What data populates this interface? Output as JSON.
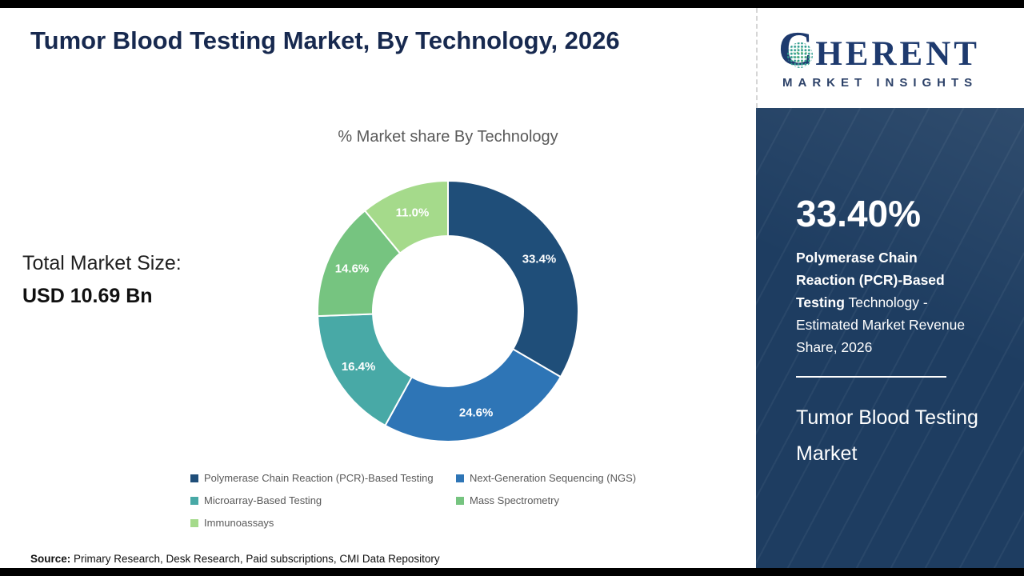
{
  "header": {
    "title": "Tumor Blood Testing Market, By Technology, 2026"
  },
  "total_market": {
    "label": "Total Market Size:",
    "value": "USD 10.69 Bn"
  },
  "chart_data": {
    "type": "pie",
    "donut": true,
    "title": "% Market share By Technology",
    "labels": [
      "Polymerase Chain Reaction (PCR)-Based Testing",
      "Next-Generation Sequencing (NGS)",
      "Microarray-Based Testing",
      "Mass Spectrometry",
      "Immunoassays"
    ],
    "values": [
      33.4,
      24.6,
      16.4,
      14.6,
      11.0
    ],
    "value_labels": [
      "33.4%",
      "24.6%",
      "16.4%",
      "14.6%",
      "11.0%"
    ],
    "colors": [
      "#1f4e79",
      "#2e75b6",
      "#48a9a6",
      "#76c480",
      "#a5da8b"
    ],
    "start_angle": 0,
    "legend_position": "bottom"
  },
  "source": {
    "label": "Source:",
    "text": " Primary Research, Desk Research, Paid subscriptions, CMI Data Repository"
  },
  "logo": {
    "c": "C",
    "rest": "HERENT",
    "subtitle": "MARKET INSIGHTS"
  },
  "sidebar": {
    "stat_value": "33.40%",
    "desc_bold": "Polymerase Chain Reaction (PCR)-Based Testing",
    "desc_rest": " Technology - Estimated Market Revenue Share, 2026",
    "product_title": "Tumor Blood Testing Market"
  }
}
